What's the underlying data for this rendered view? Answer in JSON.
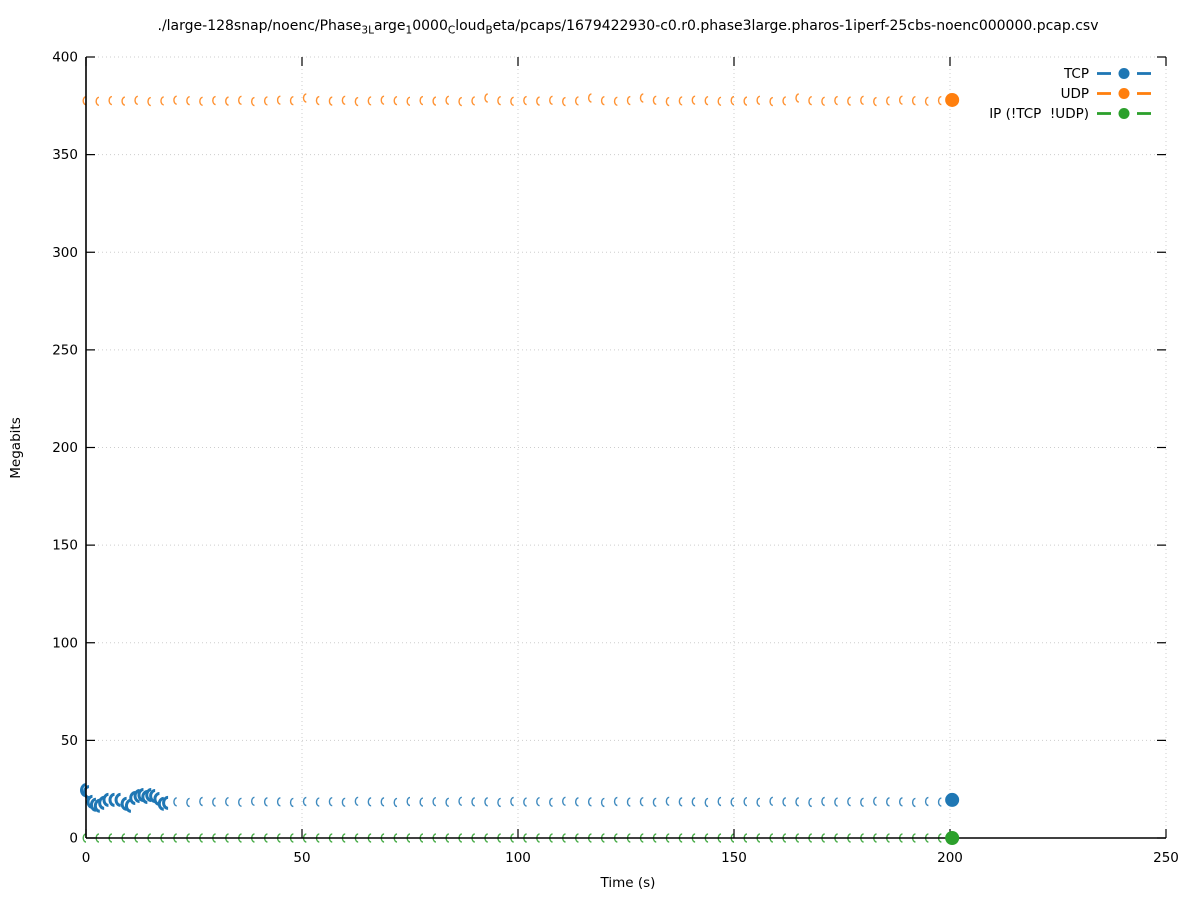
{
  "chart_data": {
    "type": "scatter",
    "title_text": "./large-128snap/noenc/Phase3Large10000CloudBeta/pcaps/1679422930-c0.r0.phase3large.pharos-1iperf-25cbs-noenc000000.pcap.csv",
    "title_segments": [
      {
        "text": "./large-128snap/noenc/Phase",
        "sub": false
      },
      {
        "text": "3L",
        "sub": true
      },
      {
        "text": "arge",
        "sub": false
      },
      {
        "text": "1",
        "sub": true
      },
      {
        "text": "0000",
        "sub": false
      },
      {
        "text": "C",
        "sub": true
      },
      {
        "text": "loud",
        "sub": false
      },
      {
        "text": "B",
        "sub": true
      },
      {
        "text": "eta/pcaps/1679422930-c0.r0.phase3large.pharos-1iperf-25cbs-noenc000000.pcap.csv",
        "sub": false
      }
    ],
    "xlabel": "Time (s)",
    "ylabel": "Megabits",
    "xlim": [
      0,
      250
    ],
    "ylim": [
      0,
      400
    ],
    "xticks": [
      0,
      50,
      100,
      150,
      200,
      250
    ],
    "yticks": [
      0,
      50,
      100,
      150,
      200,
      250,
      300,
      350,
      400
    ],
    "grid": true,
    "grid_color": "#cdcdcd",
    "legend_position": "inside top-right",
    "series": [
      {
        "name": "TCP",
        "color": "#1f77b4",
        "marker": "circle",
        "line": "dashed",
        "summary": "Starts ~24.5 Mb at t=0, dips to ~16.5, fluctuates 16-22 Mb until ~20 s, then steady ~18.5 Mb through 198 s; final dot 19.5 Mb at t=200.5 s",
        "emphasis_until": 20,
        "t": [
          0,
          0.7,
          1.5,
          2.3,
          3.2,
          4.2,
          5.2,
          6.6,
          8,
          9.4,
          10.4,
          11.4,
          12.4,
          13.3,
          14.2,
          15.1,
          16,
          17,
          18,
          19,
          21,
          24,
          27,
          30,
          33,
          36,
          39,
          42,
          45,
          48,
          51,
          54,
          57,
          60,
          63,
          66,
          69,
          72,
          75,
          78,
          81,
          84,
          87,
          90,
          93,
          96,
          99,
          102,
          105,
          108,
          111,
          114,
          117,
          120,
          123,
          126,
          129,
          132,
          135,
          138,
          141,
          144,
          147,
          150,
          153,
          156,
          159,
          162,
          165,
          168,
          171,
          174,
          177,
          180,
          183,
          186,
          189,
          192,
          195,
          198
        ],
        "v": [
          24.5,
          23.5,
          18.5,
          17,
          16.5,
          18,
          19.5,
          19.5,
          19.5,
          17.5,
          16.5,
          20.5,
          21.5,
          22,
          21,
          22,
          21.5,
          20,
          17.5,
          18,
          18.5,
          18.2,
          18.7,
          18.4,
          18.6,
          18.3,
          18.8,
          18.5,
          18.5,
          18.2,
          18.7,
          18.4,
          18.6,
          18.3,
          18.8,
          18.5,
          18.5,
          18.2,
          18.7,
          18.4,
          18.6,
          18.3,
          18.8,
          18.5,
          18.5,
          18.2,
          18.7,
          18.4,
          18.6,
          18.3,
          18.8,
          18.5,
          18.5,
          18.2,
          18.7,
          18.4,
          18.6,
          18.3,
          18.8,
          18.5,
          18.5,
          18.2,
          18.7,
          18.4,
          18.6,
          18.3,
          18.8,
          18.5,
          18.5,
          18.2,
          18.7,
          18.4,
          18.6,
          18.3,
          18.8,
          18.5,
          18.5,
          18.2,
          18.7,
          18.4
        ],
        "end_point": {
          "t": 200.5,
          "v": 19.5
        }
      },
      {
        "name": "UDP",
        "color": "#ff7f0e",
        "marker": "circle",
        "line": "dashed",
        "summary": "Steady ~377.5 Mb from 0 to 198 s with occasional small bumps to ~379 Mb; final dot 378 Mb at t=200.5 s",
        "t": [
          0,
          3,
          6,
          9,
          12,
          15,
          18,
          21,
          24,
          27,
          30,
          33,
          36,
          39,
          42,
          45,
          48,
          51,
          54,
          57,
          60,
          63,
          66,
          69,
          72,
          75,
          78,
          81,
          84,
          87,
          90,
          93,
          96,
          99,
          102,
          105,
          108,
          111,
          114,
          117,
          120,
          123,
          126,
          129,
          132,
          135,
          138,
          141,
          144,
          147,
          150,
          153,
          156,
          159,
          162,
          165,
          168,
          171,
          174,
          177,
          180,
          183,
          186,
          189,
          192,
          195,
          198
        ],
        "v": [
          377.6,
          377.3,
          377.7,
          377.4,
          377.8,
          377.2,
          377.5,
          377.9,
          377.6,
          377.3,
          377.7,
          377.4,
          377.8,
          377.2,
          377.5,
          377.9,
          377.6,
          379.0,
          377.7,
          377.4,
          377.8,
          377.2,
          377.5,
          377.9,
          377.6,
          377.3,
          377.7,
          377.4,
          377.8,
          377.2,
          377.5,
          379.0,
          377.6,
          377.3,
          377.7,
          377.4,
          377.8,
          377.2,
          377.5,
          379.0,
          377.6,
          377.3,
          377.7,
          379.0,
          377.8,
          377.2,
          377.5,
          377.9,
          377.6,
          377.3,
          377.7,
          377.4,
          377.8,
          377.2,
          377.5,
          379.0,
          377.6,
          377.3,
          377.7,
          377.4,
          377.8,
          377.2,
          377.5,
          377.9,
          377.6,
          377.3,
          377.7
        ],
        "end_point": {
          "t": 200.5,
          "v": 378
        }
      },
      {
        "name": "IP (!TCP  !UDP)",
        "color": "#2ca02c",
        "marker": "circle",
        "line": "dashed",
        "summary": "Constant 0 Mb from 0 to 198 s; final dot 0 Mb at t=200.5 s",
        "t": [
          0,
          3,
          6,
          9,
          12,
          15,
          18,
          21,
          24,
          27,
          30,
          33,
          36,
          39,
          42,
          45,
          48,
          51,
          54,
          57,
          60,
          63,
          66,
          69,
          72,
          75,
          78,
          81,
          84,
          87,
          90,
          93,
          96,
          99,
          102,
          105,
          108,
          111,
          114,
          117,
          120,
          123,
          126,
          129,
          132,
          135,
          138,
          141,
          144,
          147,
          150,
          153,
          156,
          159,
          162,
          165,
          168,
          171,
          174,
          177,
          180,
          183,
          186,
          189,
          192,
          195,
          198
        ],
        "v": [
          0,
          0,
          0,
          0,
          0,
          0,
          0,
          0,
          0,
          0,
          0,
          0,
          0,
          0,
          0,
          0,
          0,
          0,
          0,
          0,
          0,
          0,
          0,
          0,
          0,
          0,
          0,
          0,
          0,
          0,
          0,
          0,
          0,
          0,
          0,
          0,
          0,
          0,
          0,
          0,
          0,
          0,
          0,
          0,
          0,
          0,
          0,
          0,
          0,
          0,
          0,
          0,
          0,
          0,
          0,
          0,
          0,
          0,
          0,
          0,
          0,
          0,
          0,
          0,
          0,
          0,
          0
        ],
        "end_point": {
          "t": 200.5,
          "v": 0
        }
      }
    ]
  }
}
